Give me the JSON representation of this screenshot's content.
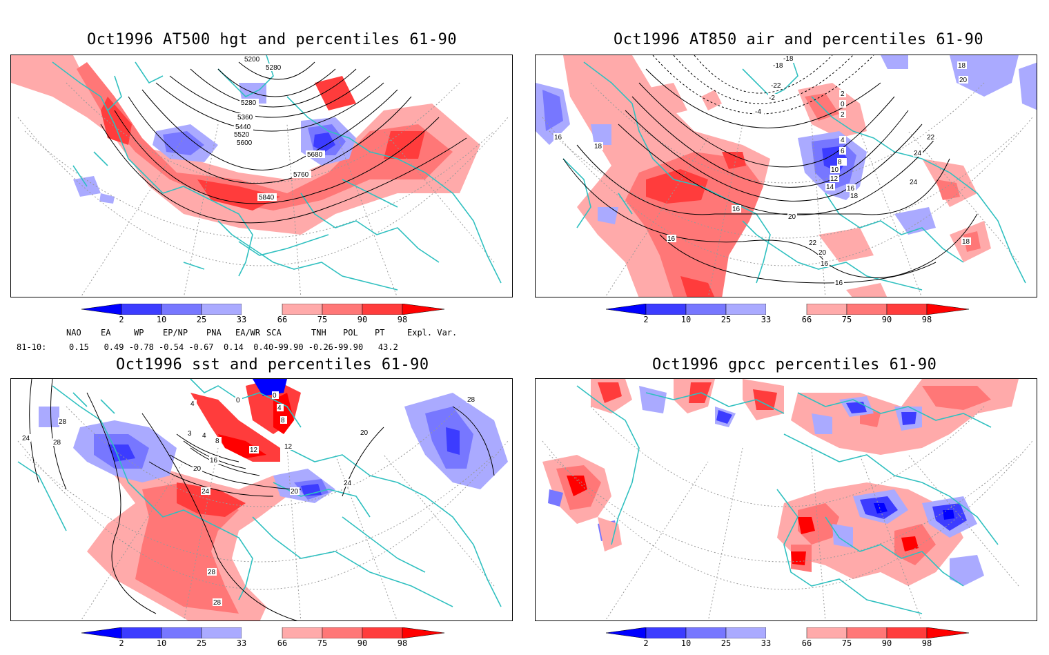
{
  "panels": [
    {
      "id": "hgt",
      "title": "Oct1996 AT500 hgt and percentiles 61-90",
      "contour_labels": [
        "5200",
        "5280",
        "5280",
        "5360",
        "5440",
        "5520",
        "5600",
        "5680",
        "5760",
        "5840"
      ]
    },
    {
      "id": "air",
      "title": "Oct1996 AT850 air and percentiles 61-90",
      "contour_labels": [
        "-18",
        "-18",
        "-22",
        "-2",
        "-4",
        "2",
        "0",
        "2",
        "4",
        "6",
        "8",
        "10",
        "12",
        "14",
        "16",
        "18",
        "16",
        "18",
        "18",
        "20",
        "22",
        "24",
        "24",
        "16",
        "16",
        "20",
        "22",
        "20",
        "16",
        "16",
        "18"
      ]
    },
    {
      "id": "sst",
      "title": "Oct1996 sst and percentiles 61-90",
      "contour_labels": [
        "24",
        "28",
        "28",
        "28",
        "0",
        "0",
        "4",
        "4",
        "8",
        "3",
        "4",
        "8",
        "12",
        "12",
        "16",
        "20",
        "20",
        "24",
        "24",
        "20",
        "28",
        "28"
      ]
    },
    {
      "id": "gpcc",
      "title": "Oct1996 gpcc percentiles 61-90",
      "contour_labels": []
    }
  ],
  "colorbar": {
    "labels": [
      "2",
      "10",
      "25",
      "33",
      "66",
      "75",
      "90",
      "98"
    ],
    "colors": {
      "blue_dark": "#0000ff",
      "blue_mid": "#3c3cff",
      "blue_light": "#7777ff",
      "blue_pale": "#aaaaff",
      "red_pale": "#ffaaaa",
      "red_light": "#ff7777",
      "red_mid": "#ff3c3c",
      "red_dark": "#ff0000"
    }
  },
  "indices": {
    "headers": [
      "NAO",
      "EA",
      "WP",
      "EP/NP",
      "PNA",
      "EA/WR",
      "SCA",
      "TNH",
      "POL",
      "PT",
      "Expl. Var."
    ],
    "row_label": "81-10:",
    "row_text": "0.15   0.49 -0.78 -0.54 -0.67  0.14  0.40-99.90 -0.26-99.90   43.2"
  },
  "colors": {
    "coast": "#30c0c0",
    "contour": "#000000",
    "grid": "#999999"
  }
}
